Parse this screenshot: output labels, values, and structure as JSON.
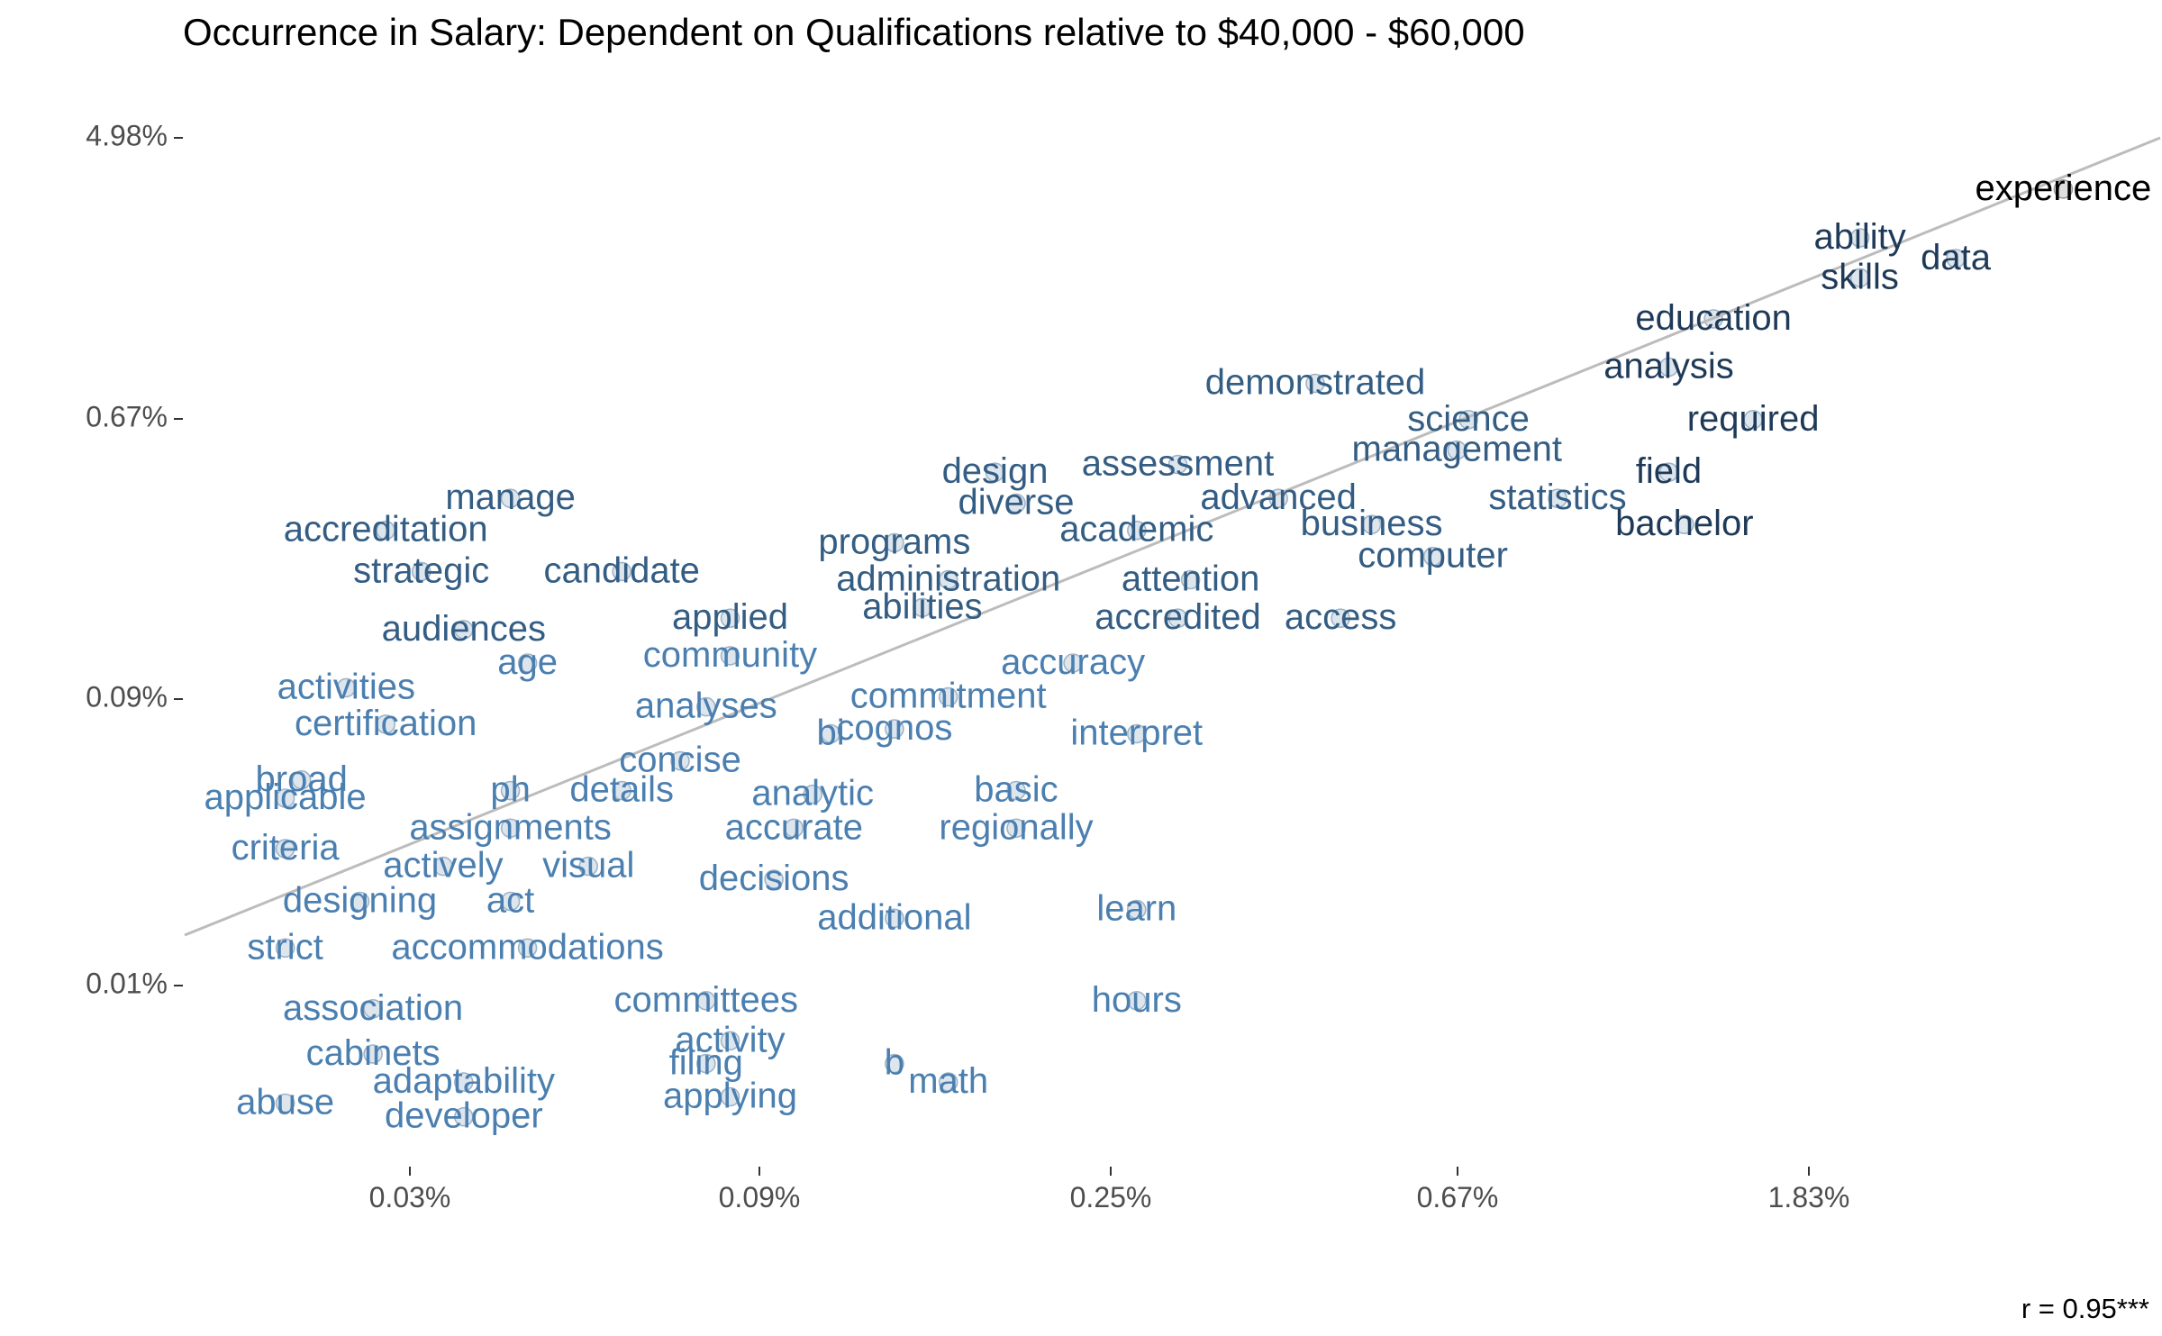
{
  "chart_data": {
    "type": "scatter",
    "title": "Occurrence in Salary: Dependent on Qualifications relative to $40,000 - $60,000",
    "xlabel": "",
    "ylabel": "",
    "x_scale": "log",
    "y_scale": "log",
    "x_ticks": [
      "0.03%",
      "0.09%",
      "0.25%",
      "0.67%",
      "1.83%"
    ],
    "y_ticks": [
      "0.01%",
      "0.09%",
      "0.67%",
      "4.98%"
    ],
    "grid": false,
    "legend": "none",
    "regression_line": true,
    "annotation": "r =  0.95***",
    "colors": {
      "low_frequency_words": "#4a7fb0",
      "mid_frequency_words": "#345d84",
      "high_frequency_words": "#1f3a58",
      "top_words": "#000000",
      "points_fill": "#c6d4e1",
      "points_stroke": "#9fb4c8",
      "line": "#bcbcbc"
    },
    "points": [
      {
        "label": "experience",
        "x": 3.4,
        "y": 2.6
      },
      {
        "label": "ability",
        "x": 1.9,
        "y": 1.85
      },
      {
        "label": "data",
        "x": 2.5,
        "y": 1.6
      },
      {
        "label": "skills",
        "x": 1.9,
        "y": 1.4
      },
      {
        "label": "education",
        "x": 1.25,
        "y": 1.05
      },
      {
        "label": "analysis",
        "x": 1.1,
        "y": 0.75
      },
      {
        "label": "demonstrated",
        "x": 0.4,
        "y": 0.67
      },
      {
        "label": "science",
        "x": 0.62,
        "y": 0.52
      },
      {
        "label": "required",
        "x": 1.4,
        "y": 0.52
      },
      {
        "label": "management",
        "x": 0.6,
        "y": 0.42
      },
      {
        "label": "field",
        "x": 1.1,
        "y": 0.36
      },
      {
        "label": "statistics",
        "x": 0.8,
        "y": 0.3
      },
      {
        "label": "bachelor",
        "x": 1.15,
        "y": 0.25
      },
      {
        "label": "design",
        "x": 0.16,
        "y": 0.36
      },
      {
        "label": "assessment",
        "x": 0.27,
        "y": 0.38
      },
      {
        "label": "advanced",
        "x": 0.36,
        "y": 0.3
      },
      {
        "label": "diverse",
        "x": 0.17,
        "y": 0.29
      },
      {
        "label": "business",
        "x": 0.47,
        "y": 0.25
      },
      {
        "label": "academic",
        "x": 0.24,
        "y": 0.24
      },
      {
        "label": "computer",
        "x": 0.56,
        "y": 0.2
      },
      {
        "label": "programs",
        "x": 0.12,
        "y": 0.22
      },
      {
        "label": "administration",
        "x": 0.14,
        "y": 0.17
      },
      {
        "label": "attention",
        "x": 0.28,
        "y": 0.17
      },
      {
        "label": "abilities",
        "x": 0.13,
        "y": 0.14
      },
      {
        "label": "accredited",
        "x": 0.27,
        "y": 0.13
      },
      {
        "label": "access",
        "x": 0.43,
        "y": 0.13
      },
      {
        "label": "manage",
        "x": 0.04,
        "y": 0.3
      },
      {
        "label": "accreditation",
        "x": 0.028,
        "y": 0.24
      },
      {
        "label": "strategic",
        "x": 0.031,
        "y": 0.18
      },
      {
        "label": "candidate",
        "x": 0.055,
        "y": 0.18
      },
      {
        "label": "applied",
        "x": 0.075,
        "y": 0.13
      },
      {
        "label": "audiences",
        "x": 0.035,
        "y": 0.12
      },
      {
        "label": "community",
        "x": 0.075,
        "y": 0.1
      },
      {
        "label": "accuracy",
        "x": 0.2,
        "y": 0.095
      },
      {
        "label": "age",
        "x": 0.042,
        "y": 0.095
      },
      {
        "label": "activities",
        "x": 0.025,
        "y": 0.08
      },
      {
        "label": "commitment",
        "x": 0.14,
        "y": 0.075
      },
      {
        "label": "analyses",
        "x": 0.07,
        "y": 0.07
      },
      {
        "label": "certification",
        "x": 0.028,
        "y": 0.062
      },
      {
        "label": "cognos",
        "x": 0.12,
        "y": 0.06
      },
      {
        "label": "bi",
        "x": 0.1,
        "y": 0.058
      },
      {
        "label": "interpret",
        "x": 0.24,
        "y": 0.058
      },
      {
        "label": "concise",
        "x": 0.065,
        "y": 0.048
      },
      {
        "label": "broad",
        "x": 0.022,
        "y": 0.042
      },
      {
        "label": "applicable",
        "x": 0.021,
        "y": 0.037
      },
      {
        "label": "ph",
        "x": 0.04,
        "y": 0.039
      },
      {
        "label": "details",
        "x": 0.055,
        "y": 0.039
      },
      {
        "label": "analytic",
        "x": 0.095,
        "y": 0.038
      },
      {
        "label": "basic",
        "x": 0.17,
        "y": 0.039
      },
      {
        "label": "assignments",
        "x": 0.04,
        "y": 0.03
      },
      {
        "label": "accurate",
        "x": 0.09,
        "y": 0.03
      },
      {
        "label": "regionally",
        "x": 0.17,
        "y": 0.03
      },
      {
        "label": "criteria",
        "x": 0.021,
        "y": 0.026
      },
      {
        "label": "actively",
        "x": 0.033,
        "y": 0.023
      },
      {
        "label": "visual",
        "x": 0.05,
        "y": 0.023
      },
      {
        "label": "decisions",
        "x": 0.085,
        "y": 0.021
      },
      {
        "label": "designing",
        "x": 0.026,
        "y": 0.018
      },
      {
        "label": "act",
        "x": 0.04,
        "y": 0.018
      },
      {
        "label": "additional",
        "x": 0.12,
        "y": 0.016
      },
      {
        "label": "learn",
        "x": 0.24,
        "y": 0.017
      },
      {
        "label": "strict",
        "x": 0.021,
        "y": 0.013
      },
      {
        "label": "accommodations",
        "x": 0.042,
        "y": 0.013
      },
      {
        "label": "committees",
        "x": 0.07,
        "y": 0.009
      },
      {
        "label": "hours",
        "x": 0.24,
        "y": 0.009
      },
      {
        "label": "association",
        "x": 0.027,
        "y": 0.0085
      },
      {
        "label": "activity",
        "x": 0.075,
        "y": 0.0068
      },
      {
        "label": "cabinets",
        "x": 0.027,
        "y": 0.0062
      },
      {
        "label": "filing",
        "x": 0.07,
        "y": 0.0058
      },
      {
        "label": "b",
        "x": 0.12,
        "y": 0.0058
      },
      {
        "label": "adaptability",
        "x": 0.035,
        "y": 0.0051
      },
      {
        "label": "math",
        "x": 0.14,
        "y": 0.0051
      },
      {
        "label": "applying",
        "x": 0.075,
        "y": 0.0046
      },
      {
        "label": "abuse",
        "x": 0.021,
        "y": 0.0044
      },
      {
        "label": "developer",
        "x": 0.035,
        "y": 0.004
      }
    ]
  }
}
